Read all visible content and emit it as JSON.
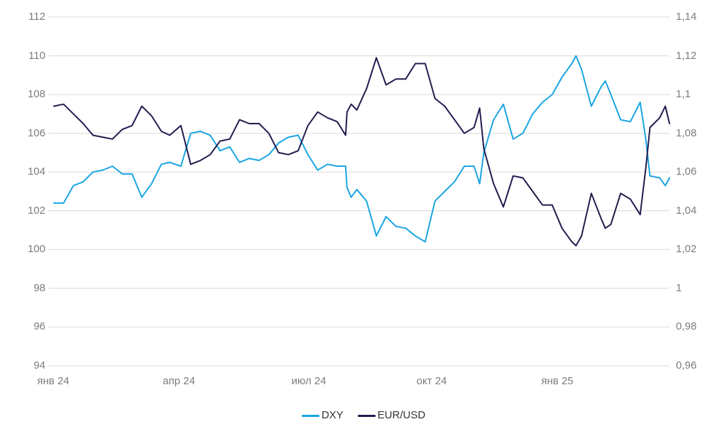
{
  "chart_data": {
    "type": "line",
    "grid": "horizontal",
    "x_dates": [
      "2024-01-05",
      "2024-01-12",
      "2024-01-19",
      "2024-01-26",
      "2024-02-02",
      "2024-02-09",
      "2024-02-16",
      "2024-02-23",
      "2024-03-01",
      "2024-03-08",
      "2024-03-15",
      "2024-03-22",
      "2024-03-28",
      "2024-04-05",
      "2024-04-12",
      "2024-04-19",
      "2024-04-26",
      "2024-05-03",
      "2024-05-10",
      "2024-05-17",
      "2024-05-24",
      "2024-05-31",
      "2024-06-07",
      "2024-06-14",
      "2024-06-21",
      "2024-06-28",
      "2024-07-05",
      "2024-07-12",
      "2024-07-19",
      "2024-07-26",
      "2024-08-01",
      "2024-08-02",
      "2024-08-05",
      "2024-08-09",
      "2024-08-16",
      "2024-08-23",
      "2024-08-30",
      "2024-09-06",
      "2024-09-13",
      "2024-09-20",
      "2024-09-27",
      "2024-10-04",
      "2024-10-11",
      "2024-10-18",
      "2024-10-25",
      "2024-11-01",
      "2024-11-05",
      "2024-11-08",
      "2024-11-15",
      "2024-11-22",
      "2024-11-29",
      "2024-12-06",
      "2024-12-13",
      "2024-12-20",
      "2024-12-27",
      "2025-01-03",
      "2025-01-10",
      "2025-01-13",
      "2025-01-17",
      "2025-01-24",
      "2025-01-31",
      "2025-02-03",
      "2025-02-07",
      "2025-02-14",
      "2025-02-21",
      "2025-02-28",
      "2025-03-04",
      "2025-03-07",
      "2025-03-14",
      "2025-03-18",
      "2025-03-21"
    ],
    "series": [
      {
        "name": "DXY",
        "axis": "left",
        "color": "#1aa5e3",
        "values": [
          102.4,
          102.4,
          103.3,
          103.5,
          104.0,
          104.1,
          104.3,
          103.9,
          103.9,
          102.7,
          103.4,
          104.4,
          104.5,
          104.3,
          106.0,
          106.1,
          105.9,
          105.1,
          105.3,
          104.5,
          104.7,
          104.6,
          104.9,
          105.5,
          105.8,
          105.9,
          104.9,
          104.1,
          104.4,
          104.3,
          104.3,
          103.2,
          102.7,
          103.1,
          102.5,
          100.7,
          101.7,
          101.2,
          101.1,
          100.7,
          100.4,
          102.5,
          103.0,
          103.5,
          104.3,
          104.3,
          103.4,
          105.0,
          106.7,
          107.5,
          105.7,
          106.0,
          107.0,
          107.6,
          108.0,
          108.9,
          109.6,
          110.0,
          109.3,
          107.4,
          108.4,
          108.7,
          108.0,
          106.7,
          106.6,
          107.6,
          105.7,
          103.8,
          103.7,
          103.3,
          103.7
        ]
      },
      {
        "name": "EUR/USD",
        "axis": "right",
        "color": "#211c4f",
        "values": [
          1.094,
          1.095,
          1.09,
          1.085,
          1.079,
          1.078,
          1.077,
          1.082,
          1.084,
          1.094,
          1.089,
          1.081,
          1.079,
          1.084,
          1.064,
          1.066,
          1.069,
          1.076,
          1.077,
          1.087,
          1.085,
          1.085,
          1.08,
          1.07,
          1.069,
          1.071,
          1.084,
          1.091,
          1.088,
          1.086,
          1.079,
          1.091,
          1.095,
          1.092,
          1.103,
          1.119,
          1.105,
          1.108,
          1.108,
          1.116,
          1.116,
          1.098,
          1.094,
          1.087,
          1.08,
          1.083,
          1.093,
          1.072,
          1.054,
          1.042,
          1.058,
          1.057,
          1.05,
          1.043,
          1.043,
          1.031,
          1.024,
          1.022,
          1.027,
          1.049,
          1.036,
          1.031,
          1.033,
          1.049,
          1.046,
          1.038,
          1.062,
          1.083,
          1.088,
          1.094,
          1.085
        ]
      }
    ],
    "yaxis_left": {
      "range": [
        94,
        112
      ],
      "ticks": [
        "112",
        "110",
        "108",
        "106",
        "104",
        "102",
        "100",
        "98",
        "96",
        "94"
      ]
    },
    "yaxis_right": {
      "range": [
        0.96,
        1.14
      ],
      "ticks": [
        "1,14",
        "1,12",
        "1,1",
        "1,08",
        "1,06",
        "1,04",
        "1,02",
        "1",
        "0,98",
        "0,96"
      ]
    },
    "xaxis": {
      "tick_labels": [
        "янв 24",
        "апр 24",
        "июл 24",
        "окт 24",
        "янв 25"
      ]
    },
    "legend": {
      "position": "bottom-center",
      "entries": [
        {
          "label": "DXY",
          "color": "#1aa5e3"
        },
        {
          "label": "EUR/USD",
          "color": "#211c4f"
        }
      ]
    },
    "colors": {
      "grid": "#d9d9d9",
      "tick_text": "#7c7c7c",
      "background": "#ffffff"
    }
  }
}
